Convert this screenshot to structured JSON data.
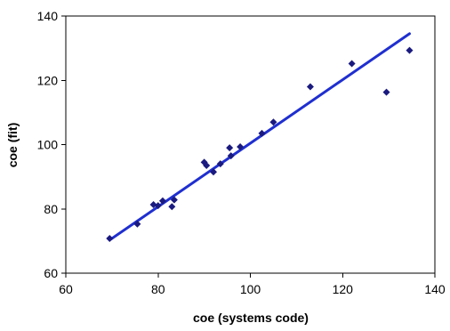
{
  "chart_data": {
    "type": "scatter",
    "title": "",
    "xlabel": "coe (systems code)",
    "ylabel": "coe (fit)",
    "xlim": [
      60,
      140
    ],
    "ylim": [
      60,
      140
    ],
    "xticks": [
      60,
      80,
      100,
      120,
      140
    ],
    "yticks": [
      60,
      80,
      100,
      120,
      140
    ],
    "xtick_labels": [
      "60",
      "80",
      "100",
      "120",
      "140"
    ],
    "ytick_labels": [
      "60",
      "80",
      "100",
      "120",
      "140"
    ],
    "grid": false,
    "legend": "none",
    "marker": "diamond",
    "marker_color": "#1a1a80",
    "trendline_color": "#1f2fd0",
    "points": [
      {
        "x": 69.5,
        "y": 70.8
      },
      {
        "x": 75.5,
        "y": 75.3
      },
      {
        "x": 79.0,
        "y": 81.3
      },
      {
        "x": 80.0,
        "y": 81.0
      },
      {
        "x": 81.0,
        "y": 82.5
      },
      {
        "x": 83.0,
        "y": 80.7
      },
      {
        "x": 83.5,
        "y": 82.8
      },
      {
        "x": 90.0,
        "y": 94.5
      },
      {
        "x": 90.5,
        "y": 93.5
      },
      {
        "x": 92.0,
        "y": 91.5
      },
      {
        "x": 93.5,
        "y": 94.0
      },
      {
        "x": 95.5,
        "y": 99.0
      },
      {
        "x": 95.8,
        "y": 96.5
      },
      {
        "x": 97.8,
        "y": 99.3
      },
      {
        "x": 102.5,
        "y": 103.5
      },
      {
        "x": 105.0,
        "y": 107.0
      },
      {
        "x": 113.0,
        "y": 118.0
      },
      {
        "x": 122.0,
        "y": 125.2
      },
      {
        "x": 129.5,
        "y": 116.3
      },
      {
        "x": 134.5,
        "y": 129.3
      }
    ],
    "trendline": {
      "x": [
        69.5,
        134.5
      ],
      "y": [
        70.3,
        134.5
      ]
    }
  }
}
